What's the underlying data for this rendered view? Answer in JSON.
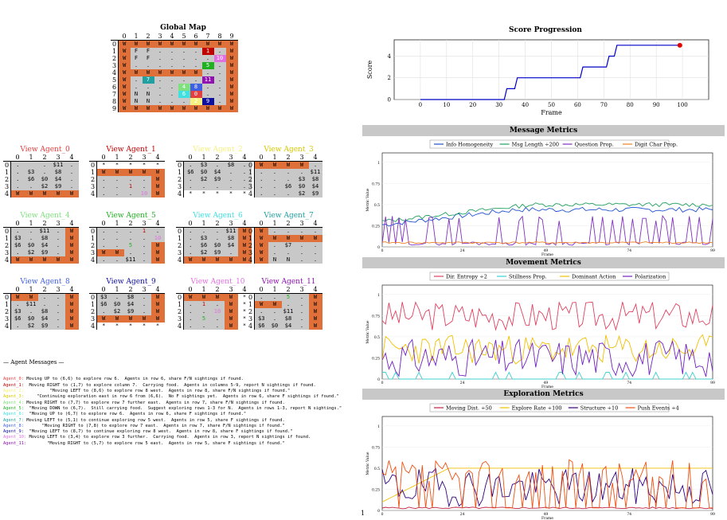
{
  "global_map": {
    "title": "Global Map",
    "cols": [
      "0",
      "1",
      "2",
      "3",
      "4",
      "5",
      "6",
      "7",
      "8",
      "9"
    ],
    "rows": [
      [
        "W",
        "W",
        "W",
        "W",
        "W",
        "W",
        "W",
        "W",
        "W",
        "W"
      ],
      [
        "W",
        "F",
        "F",
        ".",
        ".",
        ".",
        ".",
        "1",
        ".",
        "W"
      ],
      [
        "W",
        "F",
        "F",
        ".",
        ".",
        ".",
        ".",
        ".",
        "10",
        "W"
      ],
      [
        "W",
        ".",
        ".",
        ".",
        ".",
        ".",
        ".",
        "5",
        ".",
        "W"
      ],
      [
        "W",
        "W",
        "W",
        "W",
        "W",
        "W",
        "W",
        ".",
        ".",
        "W"
      ],
      [
        "W",
        ".",
        "7",
        ".",
        ".",
        ".",
        ".",
        "11",
        ".",
        "W"
      ],
      [
        "W",
        ".",
        ".",
        ".",
        ".",
        "4",
        "8",
        ".",
        ".",
        "W"
      ],
      [
        "W",
        "N",
        "N",
        ".",
        ".",
        "6",
        "0",
        ".",
        ".",
        "W"
      ],
      [
        "W",
        "N",
        "N",
        ".",
        ".",
        ".",
        "2",
        "9",
        ".",
        "W"
      ],
      [
        "W",
        "W",
        "W",
        "W",
        "W",
        "W",
        "W",
        "W",
        "W",
        "W"
      ]
    ]
  },
  "views": [
    {
      "name": "View Agent_0",
      "color": "#e04040",
      "rows": [
        [
          ".",
          " ",
          ".",
          "$11",
          "."
        ],
        [
          ".",
          "$3",
          ".",
          "$8",
          "."
        ],
        [
          ".",
          "$6",
          "$0",
          "$4",
          "."
        ],
        [
          ".",
          ".",
          "$2",
          "$9",
          "."
        ],
        [
          "W",
          "W",
          "W",
          "W",
          "W"
        ]
      ]
    },
    {
      "name": "View Agent_1",
      "color": "#c00000",
      "rows": [
        [
          "*",
          "*",
          "*",
          "*",
          "*"
        ],
        [
          "W",
          "W",
          "W",
          "W",
          "W"
        ],
        [
          ".",
          ".",
          ".",
          ".",
          "W"
        ],
        [
          ".",
          ".",
          "1",
          ".",
          "W"
        ],
        [
          ".",
          ".",
          ".",
          "10",
          "W"
        ]
      ]
    },
    {
      "name": "View Agent_2",
      "color": "#f5f080",
      "rows": [
        [
          ".",
          "$3",
          ".",
          "$8",
          "."
        ],
        [
          "$6",
          "$0",
          "$4",
          ".",
          "."
        ],
        [
          ".",
          "$2",
          "$9",
          ".",
          "."
        ],
        [
          ".",
          ".",
          ".",
          ".",
          "."
        ],
        [
          "*",
          "*",
          "*",
          "*",
          "*"
        ]
      ]
    },
    {
      "name": "View Agent_3",
      "color": "#d8c800",
      "rows": [
        [
          "W",
          "W",
          "W",
          "W",
          "."
        ],
        [
          ".",
          ".",
          ".",
          ".",
          "$11"
        ],
        [
          ".",
          ".",
          ".",
          "$3",
          "$8"
        ],
        [
          ".",
          ".",
          "$6",
          "$0",
          "$4"
        ],
        [
          ".",
          ".",
          ".",
          "$2",
          "$9"
        ]
      ]
    },
    {
      "name": "View Agent_4",
      "color": "#7fe07f",
      "rows": [
        [
          ".",
          ".",
          "$11",
          ".",
          "W"
        ],
        [
          "$3",
          ".",
          "$8",
          ".",
          "W"
        ],
        [
          "$6",
          "$0",
          "$4",
          ".",
          "W"
        ],
        [
          ".",
          "$2",
          "$9",
          ".",
          "W"
        ],
        [
          "W",
          "W",
          "W",
          "W",
          "W"
        ]
      ]
    },
    {
      "name": "View Agent_5",
      "color": "#20b020",
      "rows": [
        [
          ".",
          ".",
          ".",
          "1",
          ".",
          "W"
        ],
        [
          ".",
          ".",
          ".",
          ".",
          "10",
          "W"
        ],
        [
          ".",
          ".",
          "5",
          ".",
          "W"
        ],
        [
          "W",
          "W",
          ".",
          ".",
          "W"
        ],
        [
          ".",
          ".",
          "$11",
          ".",
          "W"
        ]
      ]
    },
    {
      "name": "View Agent_6",
      "color": "#40e0e0",
      "rows": [
        [
          ".",
          ".",
          ".",
          "$11",
          "W"
        ],
        [
          ".",
          "$3",
          ".",
          "$8",
          "W"
        ],
        [
          ".",
          "$6",
          "$0",
          "$4",
          "W"
        ],
        [
          ".",
          "$2",
          "$9",
          ".",
          "W"
        ],
        [
          "W",
          "W",
          "W",
          "W",
          "W"
        ]
      ]
    },
    {
      "name": "View Agent_7",
      "color": "#20a0a0",
      "rows": [
        [
          "W",
          ".",
          ".",
          ".",
          "."
        ],
        [
          "W",
          "W",
          "W",
          "W",
          "W"
        ],
        [
          "W",
          ".",
          "$7",
          ".",
          "."
        ],
        [
          "W",
          ".",
          ".",
          ".",
          "."
        ],
        [
          "W",
          "N",
          "N",
          ".",
          "."
        ]
      ]
    },
    {
      "name": "View Agent_8",
      "color": "#4060e0",
      "rows": [
        [
          "W",
          "W",
          ".",
          ".",
          "W"
        ],
        [
          ".",
          "$11",
          ".",
          ".",
          "W"
        ],
        [
          "$3",
          ".",
          "$8",
          ".",
          "W"
        ],
        [
          "$6",
          "$0",
          "$4",
          ".",
          "W"
        ],
        [
          ".",
          "$2",
          "$9",
          ".",
          "W"
        ]
      ]
    },
    {
      "name": "View Agent_9",
      "color": "#1010a0",
      "rows": [
        [
          "$3",
          ".",
          "$8",
          ".",
          "W"
        ],
        [
          "$6",
          "$0",
          "$4",
          ".",
          "W"
        ],
        [
          ".",
          "$2",
          "$9",
          ".",
          "W"
        ],
        [
          "W",
          "W",
          "W",
          "W",
          "W"
        ],
        [
          "*",
          "*",
          "*",
          "*",
          "*"
        ]
      ]
    },
    {
      "name": "View Agent_10",
      "color": "#e070e0",
      "rows": [
        [
          "W",
          "W",
          "W",
          "W",
          "*"
        ],
        [
          ".",
          "1",
          ".",
          "W",
          "*"
        ],
        [
          ".",
          ".",
          "10",
          "W",
          "*"
        ],
        [
          ".",
          "5",
          ".",
          "W",
          "*"
        ],
        [
          ".",
          ".",
          ".",
          "W",
          "*"
        ]
      ]
    },
    {
      "name": "View Agent_11",
      "color": "#9010b0",
      "rows": [
        [
          ".",
          ".",
          "5",
          ".",
          "W"
        ],
        [
          "W",
          "W",
          ".",
          ".",
          "W"
        ],
        [
          ".",
          ".",
          "$11",
          ".",
          "W"
        ],
        [
          "$3",
          ".",
          "$8",
          ".",
          "W"
        ],
        [
          "$6",
          "$0",
          "$4",
          ".",
          "W"
        ]
      ]
    }
  ],
  "messages": {
    "header": "— Agent Messages —",
    "items": [
      {
        "agent": "Agent_0:",
        "color": "#e04040",
        "text": " Moving UP to (6,6) to explore row 6.  Agents in row 6, share F/N sightings if found."
      },
      {
        "agent": "Agent_1:",
        "color": "#c00000",
        "text": "  Moving RIGHT to (1,7) to explore column 7.  Carrying food.  Agents in columns 5-9, report N sightings if found."
      },
      {
        "agent": "Agent_2:",
        "color": "#f5f080",
        "text": "          \"Moving LEFT to (8,6) to explore row 8 west.  Agents in row 8, share F/N sightings if found.\""
      },
      {
        "agent": "Agent_3:",
        "color": "#d8c800",
        "text": "     \"Continuing exploration east in row 6 from (6,6).  No F sightings yet.  Agents in row 6, share F sightings if found.\""
      },
      {
        "agent": "Agent_4:",
        "color": "#7fe07f",
        "text": " Moving RIGHT to (7,7) to explore row 7 further east.  Agents in row 7, share F/N sightings if found."
      },
      {
        "agent": "Agent_5:",
        "color": "#20b020",
        "text": "  \"Moving DOWN to (6,7).  Still carrying food.  Suggest exploring rows 1-3 for N.  Agents in rows 1-3, report N sightings.\""
      },
      {
        "agent": "Agent_6:",
        "color": "#40e0e0",
        "text": "  \"Moving UP to (6,7) to explore row 6.  Agents in row 6, share F sightings if found.\""
      },
      {
        "agent": "Agent_7:",
        "color": "#20a0a0",
        "text": " Moving LEFT to (5,1) to continue exploring row 5 west.  Agents in row 5, share F sightings if found."
      },
      {
        "agent": "Agent_8:",
        "color": "#4060e0",
        "text": "       \"Moving RIGHT to (7,8) to explore row 7 east.  Agents in row 7, share F/N sightings if found.\""
      },
      {
        "agent": "Agent_9:",
        "color": "#1010a0",
        "text": "  \"Moving LEFT to (8,7) to continue exploring row 8 west.  Agents in row 8, share F sightings if found.\""
      },
      {
        "agent": "Agent_10:",
        "color": "#e070e0",
        "text": " Moving LEFT to (3,4) to explore row 3 further.  Carrying food.  Agents in row 3, report N sightings if found."
      },
      {
        "agent": "Agent_11:",
        "color": "#9010b0",
        "text": "        \"Moving RIGHT to (5,7) to explore row 5 east.  Agents in row 5, share F sightings if found.\""
      }
    ]
  },
  "score_chart": {
    "title": "Score Progression",
    "xlabel": "Frame",
    "ylabel": "Score",
    "xticks": [
      "0",
      "10",
      "20",
      "30",
      "40",
      "50",
      "60",
      "70",
      "80",
      "90",
      "100"
    ],
    "yticks": [
      "0",
      "2",
      "4"
    ],
    "line_color": "#0000c8",
    "dot_color": "#e00000"
  },
  "sections": {
    "message": "Message Metrics",
    "movement": "Movement Metrics",
    "exploration": "Exploration Metrics"
  },
  "message_legend": [
    "Info Homogeneity",
    "Msg Length ÷200",
    "Question Prop.",
    "Digit Char Prop."
  ],
  "movement_legend": [
    "Dir. Entropy ÷2",
    "Stillness Prop.",
    "Dominant Action",
    "Polarization"
  ],
  "exploration_legend": [
    "Moving Dist. ÷50",
    "Explore Rate ÷100",
    "Structure ÷10",
    "Push Events ÷4"
  ],
  "metric_axes": {
    "ylabel": "Metric Value",
    "xlabel": "Frame",
    "xticks": [
      "0",
      "24",
      "49",
      "74",
      "99"
    ],
    "yticks": [
      "0",
      "0.25",
      "0.5",
      "0.75",
      "1"
    ]
  },
  "page_number": "1",
  "chart_data": {
    "type": "line",
    "title": "Score Progression",
    "xlabel": "Frame",
    "ylabel": "Score",
    "x": [
      0,
      32,
      33,
      36,
      37,
      61,
      62,
      71,
      72,
      74,
      75,
      99
    ],
    "values": [
      0,
      0,
      1,
      1,
      2,
      2,
      3,
      3,
      4,
      4,
      5,
      5
    ],
    "ylim": [
      0,
      5.5
    ],
    "xlim": [
      -10,
      110
    ]
  }
}
